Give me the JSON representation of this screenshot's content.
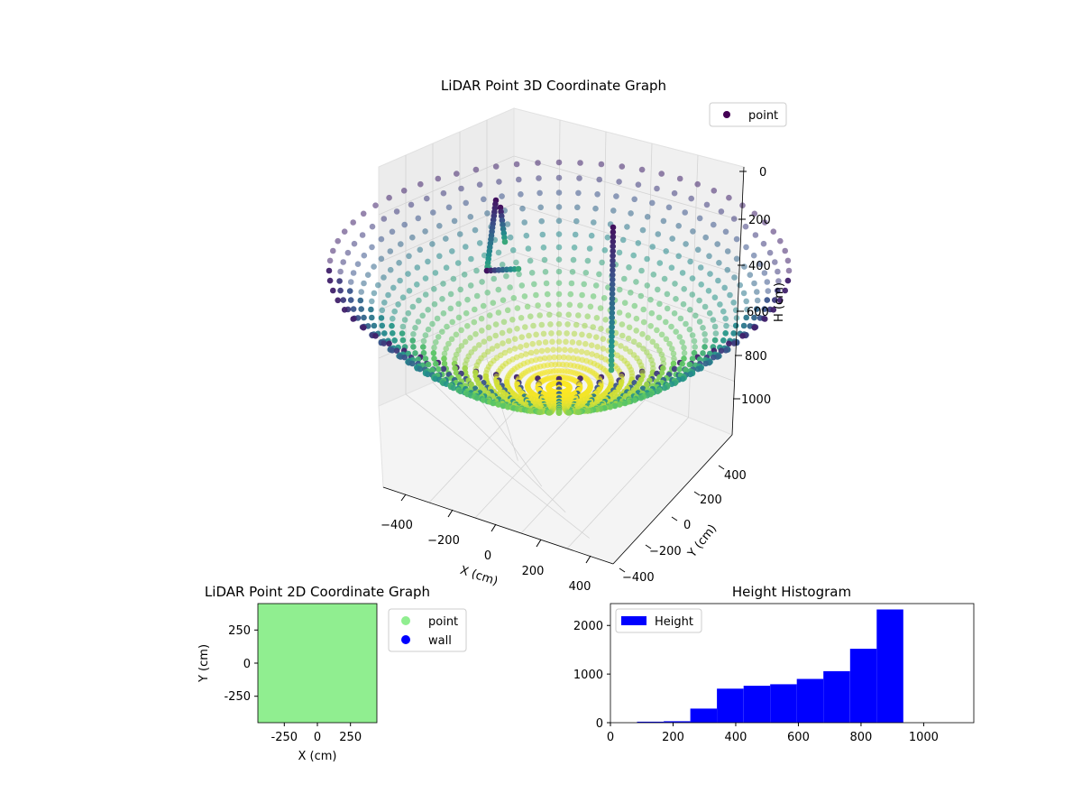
{
  "chart_data": [
    {
      "type": "scatter",
      "title": "LiDAR Point 3D Coordinate Graph",
      "xlabel": "X (cm)",
      "ylabel": "Y (cm)",
      "zlabel": "H (cm)",
      "xticks": [
        "−400",
        "−200",
        "0",
        "200",
        "400"
      ],
      "yticks": [
        "400",
        "200",
        "0",
        "−200",
        "−400"
      ],
      "zticks": [
        "0",
        "200",
        "400",
        "600",
        "800",
        "1000"
      ],
      "xlim": [
        -450,
        450
      ],
      "ylim": [
        -450,
        450
      ],
      "zlim": [
        0,
        1150
      ],
      "zaxis_inverted": true,
      "colormap": "viridis",
      "legend": {
        "position": "top-right",
        "entries": [
          {
            "label": "point",
            "color": "#440154"
          }
        ]
      },
      "surface": {
        "shape": "paraboloid bowl",
        "rim_radius": 450,
        "rim_height": 0,
        "bottom_height": 1100
      }
    },
    {
      "type": "scatter",
      "title": "LiDAR Point 2D Coordinate Graph",
      "xlabel": "X (cm)",
      "ylabel": "Y (cm)",
      "xticks": [
        -250,
        0,
        250
      ],
      "yticks": [
        250,
        0,
        -250
      ],
      "xlim": [
        -450,
        450
      ],
      "ylim": [
        -450,
        450
      ],
      "fill_color": "#90ee90",
      "legend": {
        "position": "outside-right",
        "entries": [
          {
            "label": "point",
            "color": "#90ee90"
          },
          {
            "label": "wall",
            "color": "#0000ff"
          }
        ]
      }
    },
    {
      "type": "bar",
      "title": "Height Histogram",
      "xticks": [
        0,
        200,
        400,
        600,
        800,
        1000
      ],
      "yticks": [
        0,
        1000,
        2000
      ],
      "xlim": [
        0,
        1160
      ],
      "ylim": [
        0,
        2450
      ],
      "bar_color": "#0000ff",
      "legend": {
        "position": "top-left",
        "entries": [
          {
            "label": "Height",
            "color": "#0000ff"
          }
        ]
      },
      "bins": [
        {
          "x0": 85,
          "x1": 170,
          "value": 20
        },
        {
          "x0": 170,
          "x1": 255,
          "value": 30
        },
        {
          "x0": 255,
          "x1": 340,
          "value": 290
        },
        {
          "x0": 340,
          "x1": 425,
          "value": 700
        },
        {
          "x0": 425,
          "x1": 510,
          "value": 760
        },
        {
          "x0": 510,
          "x1": 595,
          "value": 790
        },
        {
          "x0": 595,
          "x1": 680,
          "value": 900
        },
        {
          "x0": 680,
          "x1": 765,
          "value": 1060
        },
        {
          "x0": 765,
          "x1": 850,
          "value": 1520
        },
        {
          "x0": 850,
          "x1": 935,
          "value": 2330
        }
      ]
    }
  ]
}
